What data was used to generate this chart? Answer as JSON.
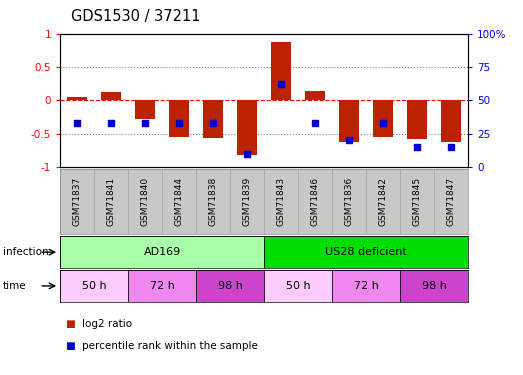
{
  "title": "GDS1530 / 37211",
  "samples": [
    "GSM71837",
    "GSM71841",
    "GSM71840",
    "GSM71844",
    "GSM71838",
    "GSM71839",
    "GSM71843",
    "GSM71846",
    "GSM71836",
    "GSM71842",
    "GSM71845",
    "GSM71847"
  ],
  "log2_ratio": [
    0.05,
    0.12,
    -0.28,
    -0.55,
    -0.57,
    -0.82,
    0.87,
    0.14,
    -0.62,
    -0.55,
    -0.58,
    -0.62
  ],
  "percentile_rank": [
    33,
    33,
    33,
    33,
    33,
    10,
    62,
    33,
    20,
    33,
    15,
    15
  ],
  "infection_groups": [
    {
      "label": "AD169",
      "start": 0,
      "end": 6,
      "color": "#aaffaa"
    },
    {
      "label": "US28 deficient",
      "start": 6,
      "end": 12,
      "color": "#00dd00"
    }
  ],
  "time_groups": [
    {
      "label": "50 h",
      "start": 0,
      "end": 2,
      "color": "#ffccff"
    },
    {
      "label": "72 h",
      "start": 2,
      "end": 4,
      "color": "#ee88ee"
    },
    {
      "label": "98 h",
      "start": 4,
      "end": 6,
      "color": "#cc44cc"
    },
    {
      "label": "50 h",
      "start": 6,
      "end": 8,
      "color": "#ffccff"
    },
    {
      "label": "72 h",
      "start": 8,
      "end": 10,
      "color": "#ee88ee"
    },
    {
      "label": "98 h",
      "start": 10,
      "end": 12,
      "color": "#cc44cc"
    }
  ],
  "bar_color": "#BB2200",
  "dot_color": "#0000CC",
  "ylim": [
    -1.0,
    1.0
  ],
  "yticks": [
    -1.0,
    -0.5,
    0.0,
    0.5,
    1.0
  ],
  "ytick_labels": [
    "-1",
    "-0.5",
    "0",
    "0.5",
    "1"
  ],
  "y2ticks": [
    0,
    25,
    50,
    75,
    100
  ],
  "y2tick_labels": [
    "0",
    "25",
    "50",
    "75",
    "100%"
  ],
  "dotted_lines": [
    -0.5,
    0.5
  ],
  "legend": [
    {
      "color": "#BB2200",
      "label": "log2 ratio"
    },
    {
      "color": "#0000CC",
      "label": "percentile rank within the sample"
    }
  ]
}
